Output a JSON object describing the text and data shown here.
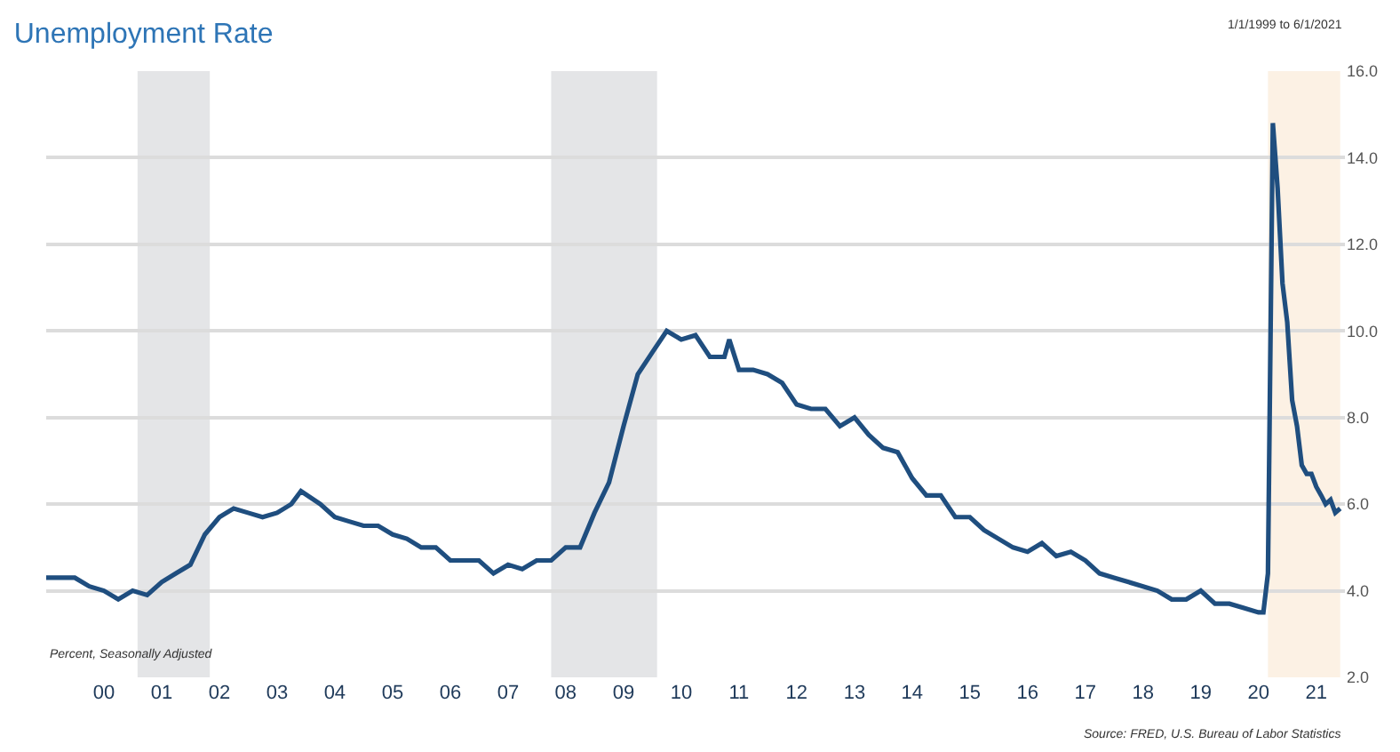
{
  "chart_data": {
    "type": "line",
    "title": "Unemployment Rate",
    "subtitle": "1/1/1999 to 6/1/2021",
    "annotations": [
      "Percent, Seasonally Adjusted",
      "Source: FRED, U.S. Bureau of Labor Statistics"
    ],
    "x": [
      "1999-01",
      "1999-04",
      "1999-07",
      "1999-10",
      "2000-01",
      "2000-04",
      "2000-07",
      "2000-10",
      "2001-01",
      "2001-04",
      "2001-07",
      "2001-10",
      "2002-01",
      "2002-04",
      "2002-07",
      "2002-10",
      "2003-01",
      "2003-04",
      "2003-06",
      "2003-10",
      "2004-01",
      "2004-04",
      "2004-07",
      "2004-10",
      "2005-01",
      "2005-04",
      "2005-07",
      "2005-10",
      "2006-01",
      "2006-04",
      "2006-07",
      "2006-10",
      "2007-01",
      "2007-04",
      "2007-07",
      "2007-10",
      "2008-01",
      "2008-04",
      "2008-07",
      "2008-10",
      "2009-01",
      "2009-04",
      "2009-07",
      "2009-10",
      "2010-01",
      "2010-04",
      "2010-07",
      "2010-10",
      "2010-11",
      "2011-01",
      "2011-04",
      "2011-07",
      "2011-10",
      "2012-01",
      "2012-04",
      "2012-07",
      "2012-10",
      "2013-01",
      "2013-04",
      "2013-07",
      "2013-10",
      "2014-01",
      "2014-04",
      "2014-07",
      "2014-10",
      "2015-01",
      "2015-04",
      "2015-07",
      "2015-10",
      "2016-01",
      "2016-04",
      "2016-07",
      "2016-10",
      "2017-01",
      "2017-04",
      "2017-07",
      "2017-10",
      "2018-01",
      "2018-04",
      "2018-07",
      "2018-10",
      "2019-01",
      "2019-04",
      "2019-07",
      "2019-10",
      "2020-01",
      "2020-02",
      "2020-03",
      "2020-04",
      "2020-05",
      "2020-06",
      "2020-07",
      "2020-08",
      "2020-09",
      "2020-10",
      "2020-11",
      "2020-12",
      "2021-01",
      "2021-02",
      "2021-03",
      "2021-04",
      "2021-05",
      "2021-06"
    ],
    "series": [
      {
        "color": "#1f4e7f",
        "values": [
          4.3,
          4.3,
          4.3,
          4.1,
          4.0,
          3.8,
          4.0,
          3.9,
          4.2,
          4.4,
          4.6,
          5.3,
          5.7,
          5.9,
          5.8,
          5.7,
          5.8,
          6.0,
          6.3,
          6.0,
          5.7,
          5.6,
          5.5,
          5.5,
          5.3,
          5.2,
          5.0,
          5.0,
          4.7,
          4.7,
          4.7,
          4.4,
          4.6,
          4.5,
          4.7,
          4.7,
          5.0,
          5.0,
          5.8,
          6.5,
          7.8,
          9.0,
          9.5,
          10.0,
          9.8,
          9.9,
          9.4,
          9.4,
          9.8,
          9.1,
          9.1,
          9.0,
          8.8,
          8.3,
          8.2,
          8.2,
          7.8,
          8.0,
          7.6,
          7.3,
          7.2,
          6.6,
          6.2,
          6.2,
          5.7,
          5.7,
          5.4,
          5.2,
          5.0,
          4.9,
          5.1,
          4.8,
          4.9,
          4.7,
          4.4,
          4.3,
          4.2,
          4.1,
          4.0,
          3.8,
          3.8,
          4.0,
          3.7,
          3.7,
          3.6,
          3.5,
          3.5,
          4.4,
          14.8,
          13.3,
          11.1,
          10.2,
          8.4,
          7.8,
          6.9,
          6.7,
          6.7,
          6.4,
          6.2,
          6.0,
          6.1,
          5.8,
          5.9
        ]
      }
    ],
    "xlim": [
      "1999-01",
      "2021-07"
    ],
    "xticks": [
      {
        "value": "2000",
        "label": "00"
      },
      {
        "value": "2001",
        "label": "01"
      },
      {
        "value": "2002",
        "label": "02"
      },
      {
        "value": "2003",
        "label": "03"
      },
      {
        "value": "2004",
        "label": "04"
      },
      {
        "value": "2005",
        "label": "05"
      },
      {
        "value": "2006",
        "label": "06"
      },
      {
        "value": "2007",
        "label": "07"
      },
      {
        "value": "2008",
        "label": "08"
      },
      {
        "value": "2009",
        "label": "09"
      },
      {
        "value": "2010",
        "label": "10"
      },
      {
        "value": "2011",
        "label": "11"
      },
      {
        "value": "2012",
        "label": "12"
      },
      {
        "value": "2013",
        "label": "13"
      },
      {
        "value": "2014",
        "label": "14"
      },
      {
        "value": "2015",
        "label": "15"
      },
      {
        "value": "2016",
        "label": "16"
      },
      {
        "value": "2017",
        "label": "17"
      },
      {
        "value": "2018",
        "label": "18"
      },
      {
        "value": "2019",
        "label": "19"
      },
      {
        "value": "2020",
        "label": "20"
      },
      {
        "value": "2021",
        "label": "21"
      }
    ],
    "ylim": [
      2,
      16
    ],
    "yticks": [
      {
        "value": 2,
        "label": "2.0"
      },
      {
        "value": 4,
        "label": "4.0"
      },
      {
        "value": 6,
        "label": "6.0"
      },
      {
        "value": 8,
        "label": "8.0"
      },
      {
        "value": 10,
        "label": "10.0"
      },
      {
        "value": 12,
        "label": "12.0"
      },
      {
        "value": 14,
        "label": "14.0"
      },
      {
        "value": 16,
        "label": "16.0"
      }
    ],
    "bands": [
      {
        "axis": "x",
        "from": "2000-08",
        "to": "2001-11",
        "color": "#e4e5e7"
      },
      {
        "axis": "x",
        "from": "2007-10",
        "to": "2009-08",
        "color": "#e4e5e7"
      },
      {
        "axis": "x",
        "from": "2020-03",
        "to": "2021-06",
        "color": "#fcf1e4"
      }
    ],
    "grid": "y",
    "marker": "none",
    "line_style": "solid"
  }
}
